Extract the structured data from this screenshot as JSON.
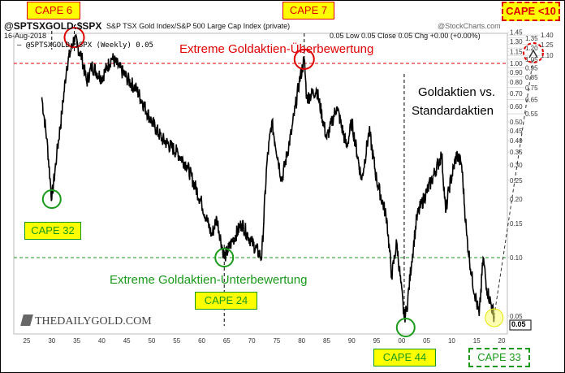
{
  "header": {
    "symbol": "@SPTSXGOLD:$SPX",
    "title": "S&P TSX Gold Index/S&P 500 Large Cap Index (private)",
    "date": "16-Aug-2018",
    "source": "@StockCharts.com",
    "quote": "0.05 Low 0.05 Close 0.05 Chg +0.00 (+0.00%)",
    "legend": "— @SPTSXGOLD:$SPX (Weekly) 0.05"
  },
  "annotations": {
    "cape_6": "CAPE 6",
    "cape_7": "CAPE 7",
    "cape_lt10": "CAPE <10",
    "cape_32": "CAPE 32",
    "cape_24": "CAPE 24",
    "cape_44": "CAPE 44",
    "cape_33": "CAPE 33",
    "overvalued": "Extreme  Goldaktien-Überbewertung",
    "undervalued": "Extreme  Goldaktien-Unterbewertung",
    "title_line1": "Goldaktien vs.",
    "title_line2": "Standardaktien",
    "logo": "THEDAILYGOLD.COM",
    "last_value": "0.05"
  },
  "colors": {
    "line": "#000000",
    "over": "#e00000",
    "under": "#1a9a1a",
    "highlight": "#ffff00"
  },
  "chart_data": {
    "type": "line",
    "title": "S&P TSX Gold Index/S&P 500 Large Cap Index (private)",
    "yscale": "log",
    "ylim": [
      0.045,
      1.5
    ],
    "xlim": [
      1923,
      2021
    ],
    "y_ticks": [
      "0.05",
      "0.10",
      "0.15",
      "0.20",
      "0.25",
      "0.30",
      "0.35",
      "0.40",
      "0.45",
      "0.50",
      "0.55",
      "0.60",
      "0.65",
      "0.70",
      "0.75",
      "0.80",
      "0.85",
      "0.90",
      "0.95",
      "1.00",
      "1.05",
      "1.10",
      "1.15",
      "1.20",
      "1.25",
      "1.30",
      "1.35",
      "1.40",
      "1.45"
    ],
    "x_ticks": [
      "25",
      "30",
      "35",
      "40",
      "45",
      "50",
      "55",
      "60",
      "65",
      "70",
      "75",
      "80",
      "85",
      "90",
      "95",
      "00",
      "05",
      "10",
      "15",
      "20"
    ],
    "reference_lines": [
      1.0,
      0.1
    ],
    "series": [
      {
        "x": [
          1928,
          1929,
          1930,
          1931,
          1932,
          1933,
          1934.5,
          1936,
          1937,
          1938,
          1940,
          1942,
          1945,
          1947,
          1950,
          1952,
          1955,
          1957,
          1960,
          1962,
          1963,
          1964.5,
          1966,
          1968,
          1970,
          1972,
          1973,
          1974,
          1976,
          1978,
          1979.5,
          1980.5,
          1981,
          1983,
          1985,
          1987,
          1989,
          1990,
          1992,
          1993.5,
          1995,
          1997,
          1998,
          1999,
          2000.5,
          2001,
          2002,
          2003,
          2004,
          2006,
          2008,
          2008.8,
          2009.5,
          2011,
          2012,
          2013,
          2014,
          2015.5,
          2016.3,
          2017,
          2018.5
        ],
        "values": [
          0.67,
          0.41,
          0.2,
          0.34,
          0.55,
          0.97,
          1.36,
          1.07,
          0.8,
          0.97,
          0.84,
          1.07,
          0.84,
          0.73,
          0.5,
          0.41,
          0.35,
          0.3,
          0.19,
          0.13,
          0.16,
          0.1,
          0.12,
          0.15,
          0.12,
          0.1,
          0.3,
          0.5,
          0.25,
          0.45,
          0.8,
          1.05,
          0.66,
          0.73,
          0.41,
          0.6,
          0.37,
          0.5,
          0.25,
          0.45,
          0.25,
          0.16,
          0.08,
          0.12,
          0.049,
          0.054,
          0.096,
          0.16,
          0.19,
          0.25,
          0.34,
          0.17,
          0.23,
          0.34,
          0.3,
          0.13,
          0.08,
          0.05,
          0.1,
          0.07,
          0.05
        ]
      }
    ]
  }
}
